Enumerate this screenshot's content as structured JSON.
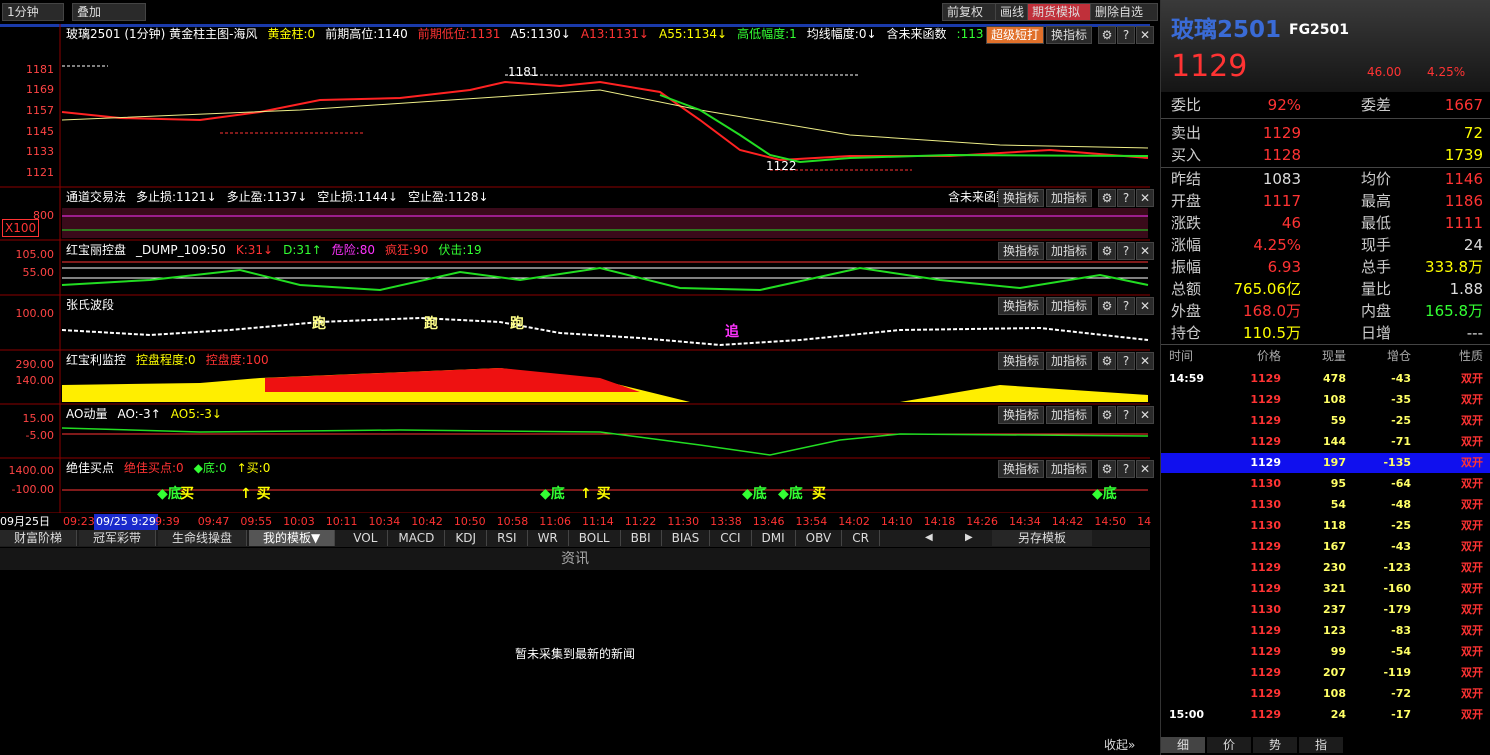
{
  "toolbar": {
    "period": "1分钟",
    "overlay": "叠加",
    "buttons": [
      "前复权",
      "画线",
      "期货模拟",
      "删除自选"
    ]
  },
  "panel_icons": [
    "⚙",
    "?",
    "✕"
  ],
  "panels": [
    {
      "legend": [
        {
          "text": "玻璃2501 (1分钟) 黄金柱主图-海风",
          "color": "#ffffff"
        },
        {
          "text": "黄金柱:0",
          "color": "#ffff00"
        },
        {
          "text": "前期高位:1140",
          "color": "#ffffff"
        },
        {
          "text": "前期低位:1131",
          "color": "#ff3333"
        },
        {
          "text": "A5:1130↓",
          "color": "#ffffff"
        },
        {
          "text": "A13:1131↓",
          "color": "#ff3333"
        },
        {
          "text": "A55:1134↓",
          "color": "#ffff00"
        },
        {
          "text": "高低幅度:1",
          "color": "#33ff33"
        },
        {
          "text": "均线幅度:0↓",
          "color": "#ffffff"
        },
        {
          "text": "含未来函数",
          "color": "#ffffff"
        },
        {
          "text": ":113",
          "color": "#33ff33"
        }
      ],
      "buttons": [
        "超级短打",
        "换指标"
      ],
      "y_labels": [
        "1181",
        "1169",
        "1157",
        "1145",
        "1133",
        "1121"
      ],
      "annotations": [
        {
          "text": "1181",
          "color": "#ffffff"
        },
        {
          "text": "1122",
          "color": "#ffffff"
        }
      ]
    },
    {
      "legend": [
        {
          "text": "通道交易法",
          "color": "#ffffff"
        },
        {
          "text": "多止损:1121↓",
          "color": "#ffffff"
        },
        {
          "text": "多止盈:1137↓",
          "color": "#ffffff"
        },
        {
          "text": "空止损:1144↓",
          "color": "#ffffff"
        },
        {
          "text": "空止盈:1128↓",
          "color": "#ffffff"
        }
      ],
      "right_note": "含未来函数",
      "buttons": [
        "换指标",
        "加指标"
      ],
      "y_labels": [
        "800"
      ],
      "scale_box": "X100"
    },
    {
      "legend": [
        {
          "text": "红宝丽控盘",
          "color": "#ffffff"
        },
        {
          "text": "_DUMP_109:50",
          "color": "#ffffff"
        },
        {
          "text": "K:31↓",
          "color": "#ff3333"
        },
        {
          "text": "D:31↑",
          "color": "#33ff33"
        },
        {
          "text": "危险:80",
          "color": "#ff33ff"
        },
        {
          "text": "疯狂:90",
          "color": "#ff3333"
        },
        {
          "text": "伏击:19",
          "color": "#33ff33"
        }
      ],
      "buttons": [
        "换指标",
        "加指标"
      ],
      "y_labels": [
        "105.00",
        "55.00"
      ]
    },
    {
      "legend": [
        {
          "text": "张氏波段",
          "color": "#ffffff"
        }
      ],
      "buttons": [
        "换指标",
        "加指标"
      ],
      "y_labels": [
        "100.00"
      ],
      "annotations": [
        {
          "text": "跑",
          "color": "#ffff88"
        },
        {
          "text": "跑",
          "color": "#ffff88"
        },
        {
          "text": "跑",
          "color": "#ffff88"
        },
        {
          "text": "追",
          "color": "#ff33ff"
        }
      ]
    },
    {
      "legend": [
        {
          "text": "红宝利监控",
          "color": "#ffffff"
        },
        {
          "text": "控盘程度:0",
          "color": "#ffff00"
        },
        {
          "text": "控盘度:100",
          "color": "#ff3333"
        }
      ],
      "buttons": [
        "换指标",
        "加指标"
      ],
      "y_labels": [
        "290.00",
        "140.00"
      ]
    },
    {
      "legend": [
        {
          "text": "AO动量",
          "color": "#ffffff"
        },
        {
          "text": "AO:-3↑",
          "color": "#ffffff"
        },
        {
          "text": "AO5:-3↓",
          "color": "#ffff00"
        }
      ],
      "buttons": [
        "换指标",
        "加指标"
      ],
      "y_labels": [
        "15.00",
        "-5.00"
      ]
    },
    {
      "legend": [
        {
          "text": "绝佳买点",
          "color": "#ffffff"
        },
        {
          "text": "绝佳买点:0",
          "color": "#ff3333"
        },
        {
          "text": "◆底:0",
          "color": "#33ff33"
        },
        {
          "text": "↑买:0",
          "color": "#ffff00"
        }
      ],
      "buttons": [
        "换指标",
        "加指标"
      ],
      "y_labels": [
        "1400.00",
        "-100.00"
      ],
      "annotations": [
        {
          "text": "◆底",
          "color": "#33ff33"
        },
        {
          "text": "买",
          "color": "#ffff00"
        },
        {
          "text": "↑ 买",
          "color": "#ffff00"
        },
        {
          "text": "◆底",
          "color": "#33ff33"
        },
        {
          "text": "↑ 买",
          "color": "#ffff00"
        },
        {
          "text": "◆底",
          "color": "#33ff33"
        },
        {
          "text": "◆底",
          "color": "#33ff33"
        },
        {
          "text": "买",
          "color": "#ffff00"
        },
        {
          "text": "◆底",
          "color": "#33ff33"
        }
      ]
    }
  ],
  "time_axis": {
    "date": "09月25日",
    "first": "09:23",
    "current": "09/25 9:29",
    "labels": [
      "9:39",
      "09:47",
      "09:55",
      "10:03",
      "10:11",
      "10:34",
      "10:42",
      "10:50",
      "10:58",
      "11:06",
      "11:14",
      "11:22",
      "11:30",
      "13:38",
      "13:46",
      "13:54",
      "14:02",
      "14:10",
      "14:18",
      "14:26",
      "14:34",
      "14:42",
      "14:50",
      "14"
    ]
  },
  "tabs": {
    "templates": [
      "财富阶梯",
      "冠军彩带",
      "生命线操盘",
      "我的模板▼"
    ],
    "indicators": [
      "VOL",
      "MACD",
      "KDJ",
      "RSI",
      "WR",
      "BOLL",
      "BBI",
      "BIAS",
      "CCI",
      "DMI",
      "OBV",
      "CR"
    ],
    "arrows": [
      "◀",
      "▶"
    ],
    "save": "另存模板"
  },
  "news": {
    "title": "资讯",
    "message": "暂未采集到最新的新闻",
    "collapse": "收起»"
  },
  "quote": {
    "name": "玻璃2501",
    "code": "FG2501",
    "price": "1129",
    "change": "46.00",
    "change_pct": "4.25%",
    "rows": [
      {
        "cells": [
          "委比",
          "92%",
          "委差",
          "1667"
        ],
        "colors": [
          "#cccccc",
          "#ff3333",
          "#cccccc",
          "#ff3333"
        ]
      },
      {
        "cells": [
          "卖出",
          "1129",
          null,
          "72"
        ],
        "colors": [
          "#cccccc",
          "#ff3333",
          null,
          "#ffff00"
        ]
      },
      {
        "cells": [
          "买入",
          "1128",
          null,
          "1739"
        ],
        "colors": [
          "#cccccc",
          "#ff3333",
          null,
          "#ffff00"
        ]
      },
      {
        "cells": [
          "昨结",
          "1083",
          "均价",
          "1146"
        ],
        "colors": [
          "#cccccc",
          "#dddddd",
          "#cccccc",
          "#ff3333"
        ]
      },
      {
        "cells": [
          "开盘",
          "1117",
          "最高",
          "1186"
        ],
        "colors": [
          "#cccccc",
          "#ff3333",
          "#cccccc",
          "#ff3333"
        ]
      },
      {
        "cells": [
          "涨跌",
          "46",
          "最低",
          "1111"
        ],
        "colors": [
          "#cccccc",
          "#ff3333",
          "#cccccc",
          "#ff3333"
        ]
      },
      {
        "cells": [
          "涨幅",
          "4.25%",
          "现手",
          "24"
        ],
        "colors": [
          "#cccccc",
          "#ff3333",
          "#cccccc",
          "#dddddd"
        ]
      },
      {
        "cells": [
          "振幅",
          "6.93",
          "总手",
          "333.8万"
        ],
        "colors": [
          "#cccccc",
          "#ff3333",
          "#cccccc",
          "#ffff00"
        ]
      },
      {
        "cells": [
          "总额",
          "765.06亿",
          "量比",
          "1.88"
        ],
        "colors": [
          "#cccccc",
          "#ffff00",
          "#cccccc",
          "#dddddd"
        ]
      },
      {
        "cells": [
          "外盘",
          "168.0万",
          "内盘",
          "165.8万"
        ],
        "colors": [
          "#cccccc",
          "#ff3333",
          "#cccccc",
          "#33ff33"
        ]
      },
      {
        "cells": [
          "持仓",
          "110.5万",
          "日增",
          "---"
        ],
        "colors": [
          "#cccccc",
          "#ffff00",
          "#cccccc",
          "#dddddd"
        ]
      }
    ]
  },
  "trades": {
    "header": [
      "时间",
      "价格",
      "现量",
      "增仓",
      "性质"
    ],
    "rows": [
      [
        "14:59",
        "1129",
        "478",
        "-43",
        "双开"
      ],
      [
        null,
        "1129",
        "108",
        "-35",
        "双开"
      ],
      [
        null,
        "1129",
        "59",
        "-25",
        "双开"
      ],
      [
        null,
        "1129",
        "144",
        "-71",
        "双开"
      ],
      [
        null,
        "1129",
        "197",
        "-135",
        "双开"
      ],
      [
        null,
        "1130",
        "95",
        "-64",
        "双开"
      ],
      [
        null,
        "1130",
        "54",
        "-48",
        "双开"
      ],
      [
        null,
        "1130",
        "118",
        "-25",
        "双开"
      ],
      [
        null,
        "1129",
        "167",
        "-43",
        "双开"
      ],
      [
        null,
        "1129",
        "230",
        "-123",
        "双开"
      ],
      [
        null,
        "1129",
        "321",
        "-160",
        "双开"
      ],
      [
        null,
        "1130",
        "237",
        "-179",
        "双开"
      ],
      [
        null,
        "1129",
        "123",
        "-83",
        "双开"
      ],
      [
        null,
        "1129",
        "99",
        "-54",
        "双开"
      ],
      [
        null,
        "1129",
        "207",
        "-119",
        "双开"
      ],
      [
        null,
        "1129",
        "108",
        "-72",
        "双开"
      ],
      [
        "15:00",
        "1129",
        "24",
        "-17",
        "双开"
      ]
    ]
  },
  "bottom_tabs": [
    "细",
    "价",
    "势",
    "指"
  ]
}
